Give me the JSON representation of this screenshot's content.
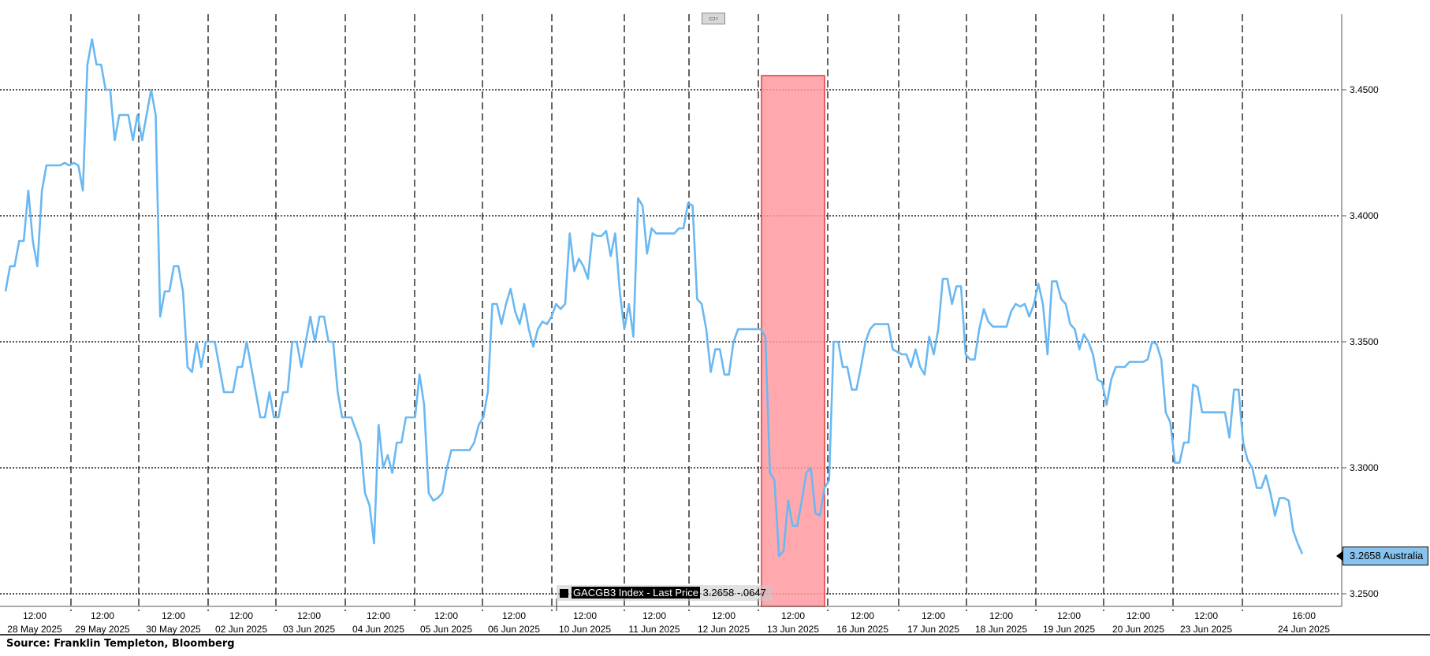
{
  "source_label": "Source: Franklin Templeton, Bloomberg",
  "legend": {
    "name": "GACGB3 Index - Last Price",
    "value": "3.2658",
    "change": "-.0647"
  },
  "last_value_label": "3.2658 Australia",
  "colors": {
    "line": "#6ab8f2",
    "highlight": "#ff9aa0",
    "highlight_border": "#e03a3a",
    "grid": "#222222"
  },
  "chart_data": {
    "type": "line",
    "ylim": [
      3.245,
      3.48
    ],
    "y_ticks": [
      "3.2500",
      "3.3000",
      "3.3500",
      "3.4000",
      "3.4500"
    ],
    "x_tick_labels": [
      {
        "time": "12:00",
        "date": "28 May 2025"
      },
      {
        "time": "12:00",
        "date": "29 May 2025"
      },
      {
        "time": "12:00",
        "date": "30 May 2025"
      },
      {
        "time": "12:00",
        "date": "02 Jun 2025"
      },
      {
        "time": "12:00",
        "date": "03 Jun 2025"
      },
      {
        "time": "12:00",
        "date": "04 Jun 2025"
      },
      {
        "time": "12:00",
        "date": "05 Jun 2025"
      },
      {
        "time": "12:00",
        "date": "06 Jun 2025"
      },
      {
        "time": "12:00",
        "date": "10 Jun 2025"
      },
      {
        "time": "12:00",
        "date": "11 Jun 2025"
      },
      {
        "time": "12:00",
        "date": "12 Jun 2025"
      },
      {
        "time": "12:00",
        "date": "13 Jun 2025"
      },
      {
        "time": "12:00",
        "date": "16 Jun 2025"
      },
      {
        "time": "12:00",
        "date": "17 Jun 2025"
      },
      {
        "time": "12:00",
        "date": "18 Jun 2025"
      },
      {
        "time": "12:00",
        "date": "19 Jun 2025"
      },
      {
        "time": "12:00",
        "date": "20 Jun 2025"
      },
      {
        "time": "12:00",
        "date": "23 Jun 2025"
      },
      {
        "time": "16:00",
        "date": "24 Jun 2025"
      }
    ],
    "highlight_session": "13 Jun 2025",
    "series": [
      {
        "values": [
          3.37,
          3.38,
          3.38,
          3.39,
          3.39,
          3.41,
          3.39,
          3.38,
          3.41,
          3.42,
          3.42,
          3.42,
          3.42,
          3.421,
          3.42,
          3.421,
          3.42,
          3.41,
          3.46,
          3.47,
          3.46,
          3.46,
          3.45,
          3.45,
          3.43,
          3.44,
          3.44,
          3.44,
          3.43,
          3.44,
          3.43,
          3.44,
          3.45,
          3.44,
          3.36,
          3.37,
          3.37,
          3.38,
          3.38,
          3.37,
          3.34,
          3.338,
          3.35,
          3.34,
          3.35,
          3.35,
          3.35,
          3.34,
          3.33,
          3.33,
          3.33,
          3.34,
          3.34,
          3.35,
          3.34,
          3.33,
          3.32,
          3.32,
          3.33,
          3.32,
          3.32,
          3.33,
          3.33,
          3.35,
          3.35,
          3.34,
          3.35,
          3.36,
          3.35,
          3.36,
          3.36,
          3.35,
          3.35,
          3.33,
          3.32,
          3.32,
          3.32,
          3.315,
          3.31,
          3.29,
          3.285,
          3.27,
          3.317,
          3.3,
          3.305,
          3.298,
          3.31,
          3.31,
          3.32,
          3.32,
          3.32,
          3.337,
          3.325,
          3.29,
          3.287,
          3.288,
          3.29,
          3.3,
          3.307,
          3.307,
          3.307,
          3.307,
          3.307,
          3.31,
          3.317,
          3.32,
          3.33,
          3.365,
          3.365,
          3.357,
          3.365,
          3.371,
          3.362,
          3.357,
          3.365,
          3.355,
          3.348,
          3.355,
          3.358,
          3.357,
          3.36,
          3.365,
          3.363,
          3.365,
          3.393,
          3.378,
          3.383,
          3.38,
          3.375,
          3.393,
          3.392,
          3.392,
          3.394,
          3.384,
          3.393,
          3.37,
          3.355,
          3.365,
          3.352,
          3.407,
          3.404,
          3.385,
          3.395,
          3.393,
          3.393,
          3.393,
          3.393,
          3.393,
          3.395,
          3.395,
          3.405,
          3.404,
          3.367,
          3.365,
          3.355,
          3.338,
          3.347,
          3.347,
          3.337,
          3.337,
          3.35,
          3.355,
          3.355,
          3.355,
          3.355,
          3.355,
          3.355,
          3.352,
          3.298,
          3.295,
          3.265,
          3.267,
          3.287,
          3.277,
          3.277,
          3.287,
          3.298,
          3.3,
          3.282,
          3.281,
          3.292,
          3.295,
          3.35,
          3.35,
          3.34,
          3.34,
          3.331,
          3.331,
          3.34,
          3.35,
          3.355,
          3.357,
          3.357,
          3.357,
          3.357,
          3.347,
          3.346,
          3.345,
          3.345,
          3.34,
          3.347,
          3.34,
          3.337,
          3.352,
          3.345,
          3.355,
          3.375,
          3.375,
          3.365,
          3.372,
          3.372,
          3.345,
          3.343,
          3.343,
          3.355,
          3.363,
          3.358,
          3.356,
          3.356,
          3.356,
          3.356,
          3.362,
          3.365,
          3.364,
          3.365,
          3.36,
          3.365,
          3.373,
          3.365,
          3.345,
          3.374,
          3.374,
          3.367,
          3.365,
          3.357,
          3.355,
          3.347,
          3.353,
          3.35,
          3.345,
          3.335,
          3.334,
          3.325,
          3.335,
          3.34,
          3.34,
          3.34,
          3.342,
          3.342,
          3.342,
          3.342,
          3.343,
          3.35,
          3.349,
          3.343,
          3.322,
          3.318,
          3.302,
          3.302,
          3.31,
          3.31,
          3.333,
          3.332,
          3.322,
          3.322,
          3.322,
          3.322,
          3.322,
          3.322,
          3.312,
          3.331,
          3.331,
          3.31,
          3.303,
          3.3,
          3.292,
          3.292,
          3.297,
          3.29,
          3.281,
          3.288,
          3.288,
          3.287,
          3.275,
          3.27,
          3.2658
        ]
      }
    ]
  }
}
